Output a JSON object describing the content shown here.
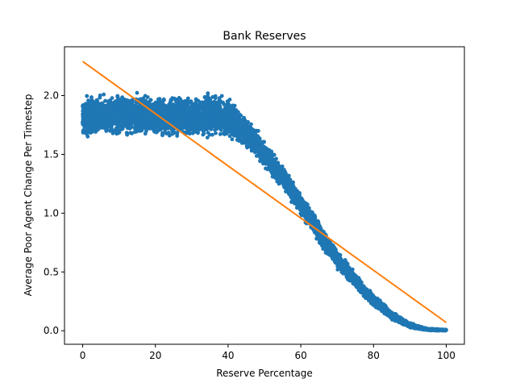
{
  "chart_data": {
    "type": "scatter",
    "title": "Bank Reserves",
    "xlabel": "Reserve Percentage",
    "ylabel": "Average Poor Agent Change Per Timestep",
    "xlim": [
      -5,
      105
    ],
    "ylim": [
      -0.115,
      2.415
    ],
    "x_ticks": [
      0,
      20,
      40,
      60,
      80,
      100
    ],
    "x_tick_labels": [
      "0",
      "20",
      "40",
      "60",
      "80",
      "100"
    ],
    "y_ticks": [
      0.0,
      0.5,
      1.0,
      1.5,
      2.0
    ],
    "y_tick_labels": [
      "0.0",
      "0.5",
      "1.0",
      "1.5",
      "2.0"
    ],
    "grid": false,
    "colors": {
      "scatter": "#1f77b4",
      "fit": "#ff7f0e"
    },
    "scatter_envelope": {
      "x": [
        0,
        5,
        10,
        15,
        20,
        25,
        30,
        35,
        40,
        42,
        45,
        48,
        50,
        55,
        60,
        65,
        70,
        75,
        80,
        85,
        90,
        95,
        100
      ],
      "y_low": [
        1.62,
        1.62,
        1.63,
        1.62,
        1.62,
        1.62,
        1.62,
        1.63,
        1.62,
        1.6,
        1.54,
        1.45,
        1.37,
        1.2,
        0.97,
        0.73,
        0.52,
        0.35,
        0.2,
        0.09,
        0.02,
        0.0,
        0.0
      ],
      "y_high": [
        2.02,
        2.03,
        2.03,
        2.03,
        2.02,
        2.02,
        2.02,
        2.05,
        2.0,
        1.95,
        1.82,
        1.72,
        1.62,
        1.42,
        1.18,
        0.95,
        0.7,
        0.5,
        0.32,
        0.17,
        0.07,
        0.02,
        0.01
      ]
    },
    "fit_line": {
      "x": [
        0,
        100
      ],
      "y": [
        2.29,
        0.07
      ]
    }
  }
}
